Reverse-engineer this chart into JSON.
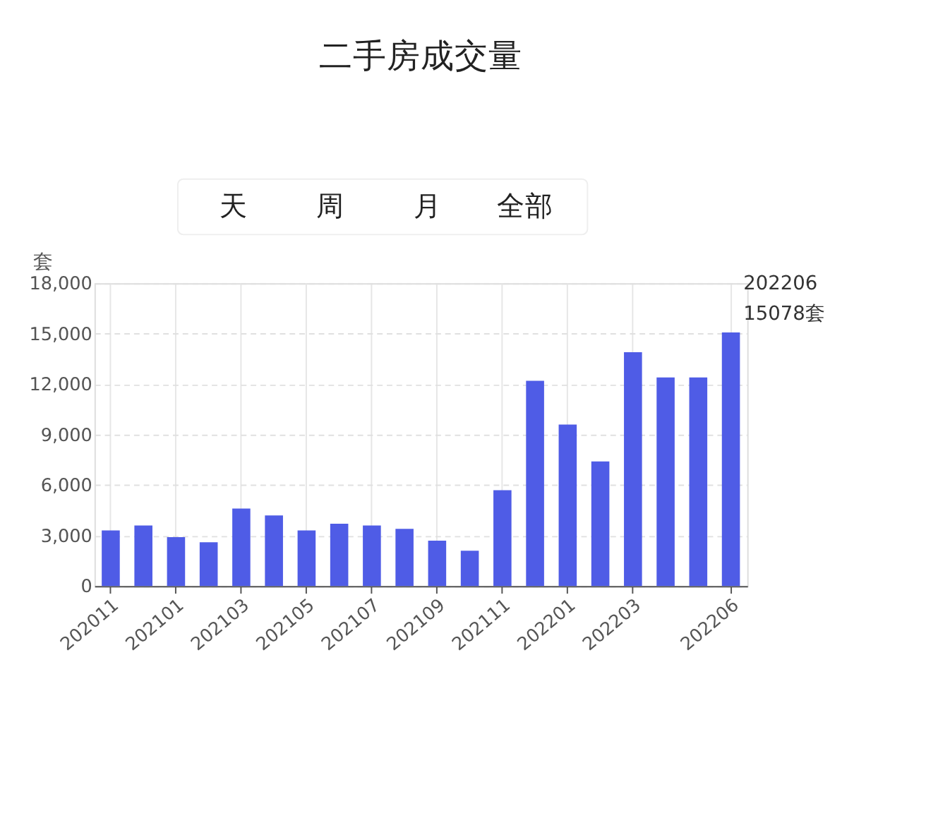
{
  "chart_data": {
    "type": "bar",
    "title": "二手房成交量",
    "ylabel": "套",
    "categories": [
      "202011",
      null,
      "202101",
      null,
      "202103",
      null,
      "202105",
      null,
      "202107",
      null,
      "202109",
      null,
      "202111",
      null,
      "202201",
      null,
      "202203",
      null,
      null,
      "202206"
    ],
    "series": [
      {
        "color": "#4f5ce6",
        "values": [
          3300,
          3600,
          2900,
          2600,
          4600,
          4200,
          3300,
          3700,
          3600,
          3400,
          2700,
          2100,
          5700,
          12200,
          9600,
          7400,
          13900,
          12400,
          12400,
          15078
        ]
      }
    ],
    "ylim": [
      0,
      18000
    ],
    "yticks": [
      {
        "value": 0,
        "label": "0"
      },
      {
        "value": 3000,
        "label": "3,000"
      },
      {
        "value": 6000,
        "label": "6,000"
      },
      {
        "value": 9000,
        "label": "9,000"
      },
      {
        "value": 12000,
        "label": "12,000"
      },
      {
        "value": 15000,
        "label": "15,000"
      },
      {
        "value": 18000,
        "label": "18,000"
      }
    ],
    "grid": true,
    "annotations": [
      "天",
      "周",
      "月",
      "全部",
      {
        "text": "202206",
        "x": "202206",
        "y": 15078
      },
      {
        "text": "15078套",
        "x": "202206",
        "y": 15078
      }
    ]
  }
}
